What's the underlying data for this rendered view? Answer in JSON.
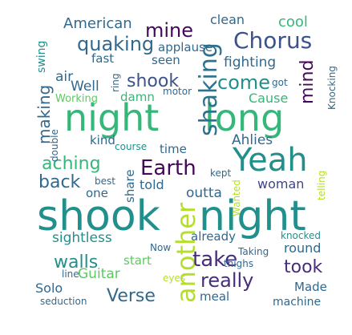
{
  "palette": {
    "dark_purple": "#44075a",
    "indigo": "#3b528b",
    "slate": "#31688e",
    "teal": "#21908c",
    "sea": "#2c728e",
    "green": "#35b779",
    "lime": "#5ec962",
    "yellow_green": "#b5de2b",
    "deep": "#472d7b",
    "navy": "#414487"
  },
  "words": [
    {
      "text": "night",
      "color": "green"
    },
    {
      "text": "long",
      "color": "green"
    },
    {
      "text": "shook",
      "color": "teal"
    },
    {
      "text": "night",
      "color": "teal"
    },
    {
      "text": "Yeah",
      "color": "teal"
    },
    {
      "text": "Chorus",
      "color": "indigo"
    },
    {
      "text": "shaking",
      "color": "sea"
    },
    {
      "text": "another",
      "color": "yellow_green"
    },
    {
      "text": "Earth",
      "color": "dark_purple"
    },
    {
      "text": "quaking",
      "color": "slate"
    },
    {
      "text": "mine",
      "color": "dark_purple"
    },
    {
      "text": "mind",
      "color": "dark_purple"
    },
    {
      "text": "come",
      "color": "teal"
    },
    {
      "text": "shook",
      "color": "indigo"
    },
    {
      "text": "aching",
      "color": "green"
    },
    {
      "text": "back",
      "color": "slate"
    },
    {
      "text": "making",
      "color": "slate"
    },
    {
      "text": "walls",
      "color": "teal"
    },
    {
      "text": "take",
      "color": "deep"
    },
    {
      "text": "took",
      "color": "deep"
    },
    {
      "text": "really",
      "color": "deep"
    },
    {
      "text": "Verse",
      "color": "slate"
    },
    {
      "text": "American",
      "color": "slate"
    },
    {
      "text": "clean",
      "color": "slate"
    },
    {
      "text": "cool",
      "color": "green"
    },
    {
      "text": "applause",
      "color": "slate"
    },
    {
      "text": "fast",
      "color": "slate"
    },
    {
      "text": "seen",
      "color": "slate"
    },
    {
      "text": "fighting",
      "color": "slate"
    },
    {
      "text": "air",
      "color": "slate"
    },
    {
      "text": "Well",
      "color": "slate"
    },
    {
      "text": "damn",
      "color": "green"
    },
    {
      "text": "Cause",
      "color": "green"
    },
    {
      "text": "got",
      "color": "slate"
    },
    {
      "text": "Knocking",
      "color": "slate"
    },
    {
      "text": "swing",
      "color": "teal"
    },
    {
      "text": "ring",
      "color": "slate"
    },
    {
      "text": "motor",
      "color": "slate"
    },
    {
      "text": "Working",
      "color": "lime"
    },
    {
      "text": "kind",
      "color": "slate"
    },
    {
      "text": "course",
      "color": "teal"
    },
    {
      "text": "double",
      "color": "slate"
    },
    {
      "text": "time",
      "color": "slate"
    },
    {
      "text": "Ahlies",
      "color": "slate"
    },
    {
      "text": "share",
      "color": "slate"
    },
    {
      "text": "told",
      "color": "slate"
    },
    {
      "text": "best",
      "color": "slate"
    },
    {
      "text": "one",
      "color": "slate"
    },
    {
      "text": "kept",
      "color": "slate"
    },
    {
      "text": "woman",
      "color": "navy"
    },
    {
      "text": "outta",
      "color": "slate"
    },
    {
      "text": "telling",
      "color": "yellow_green"
    },
    {
      "text": "Wanted",
      "color": "yellow_green"
    },
    {
      "text": "sightless",
      "color": "teal"
    },
    {
      "text": "already",
      "color": "slate"
    },
    {
      "text": "knocked",
      "color": "teal"
    },
    {
      "text": "round",
      "color": "slate"
    },
    {
      "text": "Now",
      "color": "slate"
    },
    {
      "text": "start",
      "color": "lime"
    },
    {
      "text": "Taking",
      "color": "slate"
    },
    {
      "text": "thighs",
      "color": "slate"
    },
    {
      "text": "Guitar",
      "color": "lime"
    },
    {
      "text": "eyes",
      "color": "yellow_green"
    },
    {
      "text": "line",
      "color": "slate"
    },
    {
      "text": "Solo",
      "color": "slate"
    },
    {
      "text": "meal",
      "color": "slate"
    },
    {
      "text": "Made",
      "color": "slate"
    },
    {
      "text": "machine",
      "color": "slate"
    },
    {
      "text": "seduction",
      "color": "slate"
    }
  ]
}
